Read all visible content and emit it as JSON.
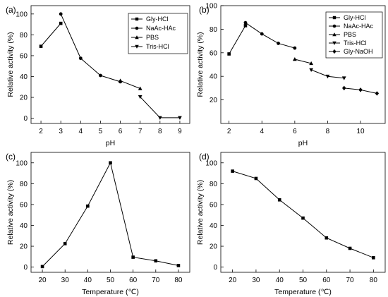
{
  "chart_data": [
    {
      "panel": "(a)",
      "type": "line",
      "xlabel": "pH",
      "ylabel": "Relative activity (%)",
      "xlim": [
        1.5,
        9.5
      ],
      "ylim": [
        -5,
        108
      ],
      "xticks": [
        2,
        3,
        4,
        5,
        6,
        7,
        8,
        9
      ],
      "yticks": [
        0,
        20,
        40,
        60,
        80,
        100
      ],
      "legend": "top-right",
      "legend_entries": [
        "Gly-HCl",
        "NaAc-HAc",
        "PBS",
        "Tris-HCl"
      ],
      "series": [
        {
          "name": "Gly-HCl",
          "marker": "square",
          "x": [
            2,
            3
          ],
          "y": [
            69,
            91
          ]
        },
        {
          "name": "NaAc-HAc",
          "marker": "circle",
          "x": [
            3,
            4,
            5,
            6
          ],
          "y": [
            100,
            57.5,
            41,
            35
          ]
        },
        {
          "name": "PBS",
          "marker": "triangle-up",
          "x": [
            6,
            7
          ],
          "y": [
            36,
            28.5
          ]
        },
        {
          "name": "Tris-HCl",
          "marker": "triangle-down",
          "x": [
            7,
            8,
            9
          ],
          "y": [
            20.5,
            0.5,
            0.5
          ]
        }
      ]
    },
    {
      "panel": "(b)",
      "type": "line",
      "xlabel": "pH",
      "ylabel": "Relative activity (%)",
      "xlim": [
        1.5,
        11.5
      ],
      "ylim": [
        0,
        100
      ],
      "xticks": [
        2,
        4,
        6,
        8,
        10
      ],
      "yticks": [
        20,
        40,
        60,
        80,
        100
      ],
      "legend": "top-right",
      "legend_entries": [
        "Gly-HCl",
        "NaAc-HAc",
        "PBS",
        "Tris-HCl",
        "Gly-NaOH"
      ],
      "series": [
        {
          "name": "Gly-HCl",
          "marker": "square",
          "x": [
            2,
            3
          ],
          "y": [
            59,
            83
          ]
        },
        {
          "name": "NaAc-HAc",
          "marker": "circle",
          "x": [
            3,
            4,
            5,
            6
          ],
          "y": [
            85.5,
            76,
            68,
            64
          ]
        },
        {
          "name": "PBS",
          "marker": "triangle-up",
          "x": [
            6,
            7
          ],
          "y": [
            54.5,
            51
          ]
        },
        {
          "name": "Tris-HCl",
          "marker": "triangle-down",
          "x": [
            7,
            8,
            9
          ],
          "y": [
            45.5,
            40,
            38.5
          ]
        },
        {
          "name": "Gly-NaOH",
          "marker": "diamond",
          "x": [
            9,
            10,
            11
          ],
          "y": [
            30,
            28.5,
            25.5
          ]
        }
      ]
    },
    {
      "panel": "(c)",
      "type": "line",
      "xlabel": "Temperature (℃)",
      "ylabel": "Relative activity (%)",
      "xlim": [
        15,
        85
      ],
      "ylim": [
        -5,
        110
      ],
      "xticks": [
        20,
        30,
        40,
        50,
        60,
        70,
        80
      ],
      "yticks": [
        0,
        20,
        40,
        60,
        80,
        100
      ],
      "series": [
        {
          "marker": "square",
          "x": [
            20,
            30,
            40,
            50,
            60,
            70,
            80
          ],
          "y": [
            0.5,
            22.5,
            58.5,
            100,
            9.5,
            6,
            1.5
          ]
        }
      ]
    },
    {
      "panel": "(d)",
      "type": "line",
      "xlabel": "Temperature (℃)",
      "ylabel": "Relative activity (%)",
      "xlim": [
        15,
        85
      ],
      "ylim": [
        -5,
        110
      ],
      "xticks": [
        20,
        30,
        40,
        50,
        60,
        70,
        80
      ],
      "yticks": [
        0,
        20,
        40,
        60,
        80,
        100
      ],
      "series": [
        {
          "marker": "square",
          "x": [
            20,
            30,
            40,
            50,
            60,
            70,
            80
          ],
          "y": [
            92,
            85,
            64.5,
            47,
            28,
            18,
            9
          ]
        }
      ]
    }
  ]
}
